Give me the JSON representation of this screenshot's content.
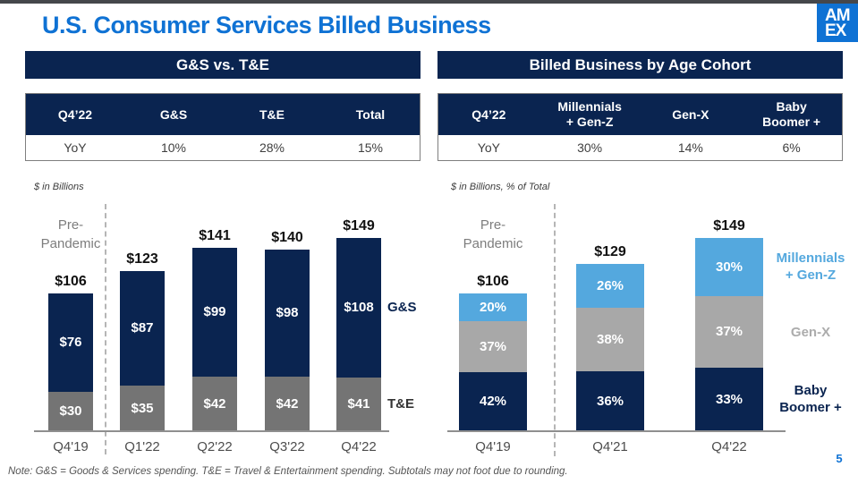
{
  "page": {
    "title": "U.S. Consumer Services Billed Business",
    "logo_line1": "AM",
    "logo_line2": "EX",
    "page_number": "5",
    "footnote": "Note: G&S = Goods & Services spending. T&E = Travel & Entertainment spending. Subtotals may not foot due to rounding."
  },
  "colors": {
    "bright_blue": "#0f72d4",
    "navy": "#0a2450",
    "gray_dark": "#747474",
    "gray_light": "#a8a8a8",
    "light_blue": "#54a8de",
    "legend_gray": "#acacac",
    "top_line": "#45474b"
  },
  "left_table": {
    "header": "G&S vs. T&E",
    "columns": [
      "Q4’22",
      "G&S",
      "T&E",
      "Total"
    ],
    "row": [
      "YoY",
      "10%",
      "28%",
      "15%"
    ]
  },
  "right_table": {
    "header": "Billed Business by Age Cohort",
    "columns": [
      "Q4’22",
      "Millennials\n+ Gen-Z",
      "Gen-X",
      "Baby\nBoomer +"
    ],
    "row": [
      "YoY",
      "30%",
      "14%",
      "6%"
    ]
  },
  "chart_data": [
    {
      "type": "bar",
      "stacked": true,
      "units_label": "$ in Billions",
      "annotation": "Pre-\nPandemic",
      "categories": [
        "Q4'19",
        "Q1'22",
        "Q2'22",
        "Q3'22",
        "Q4'22"
      ],
      "totals": [
        106,
        123,
        141,
        140,
        149
      ],
      "value_prefix": "$",
      "series": [
        {
          "name": "T&E",
          "color_key": "gray_dark",
          "values": [
            30,
            35,
            42,
            42,
            41
          ]
        },
        {
          "name": "G&S",
          "color_key": "navy",
          "values": [
            76,
            87,
            99,
            98,
            108
          ]
        }
      ],
      "legend_position": "right-of-last-bar",
      "grid": false
    },
    {
      "type": "bar",
      "stacked": true,
      "units_label": "$ in Billions, % of Total",
      "annotation": "Pre-\nPandemic",
      "categories": [
        "Q4'19",
        "Q4'21",
        "Q4'22"
      ],
      "totals": [
        106,
        129,
        149
      ],
      "value_prefix": "$",
      "value_suffix": "%",
      "series": [
        {
          "name": "Baby\nBoomer +",
          "color_key": "navy",
          "values_pct": [
            42,
            36,
            33
          ]
        },
        {
          "name": "Gen-X",
          "color_key": "gray_light",
          "values_pct": [
            37,
            38,
            37
          ]
        },
        {
          "name": "Millennials\n+ Gen-Z",
          "color_key": "light_blue",
          "values_pct": [
            20,
            26,
            30
          ]
        }
      ],
      "legend_position": "right-of-last-bar",
      "grid": false
    }
  ]
}
